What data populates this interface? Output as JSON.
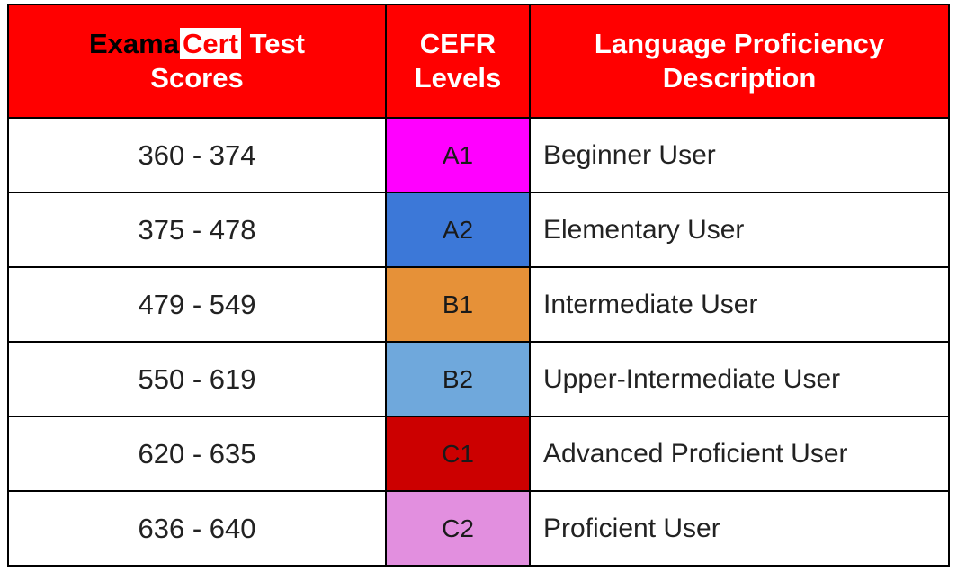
{
  "header": {
    "brand_part1": "Exama",
    "brand_part2": "Cert",
    "col1_rest": " Test",
    "col1_line2": "Scores",
    "col2_line1": "CEFR",
    "col2_line2": "Levels",
    "col3_line1": "Language Proficiency",
    "col3_line2": "Description"
  },
  "colors": {
    "header_bg": "#ff0000",
    "A1": "#ff00ff",
    "A2": "#3c78d8",
    "B1": "#e69138",
    "B2": "#6fa8dc",
    "C1": "#cc0000",
    "C2": "#e28fdf"
  },
  "rows": [
    {
      "score": "360 - 374",
      "level": "A1",
      "color": "#ff00ff",
      "desc": "Beginner User"
    },
    {
      "score": "375 - 478",
      "level": "A2",
      "color": "#3c78d8",
      "desc": "Elementary User"
    },
    {
      "score": "479 - 549",
      "level": "B1",
      "color": "#e69138",
      "desc": "Intermediate User"
    },
    {
      "score": "550 - 619",
      "level": "B2",
      "color": "#6fa8dc",
      "desc": "Upper-Intermediate  User"
    },
    {
      "score": "620 - 635",
      "level": "C1",
      "color": "#cc0000",
      "desc": "Advanced Proficient User"
    },
    {
      "score": "636 - 640",
      "level": "C2",
      "color": "#e28fdf",
      "desc": "Proficient User"
    }
  ]
}
